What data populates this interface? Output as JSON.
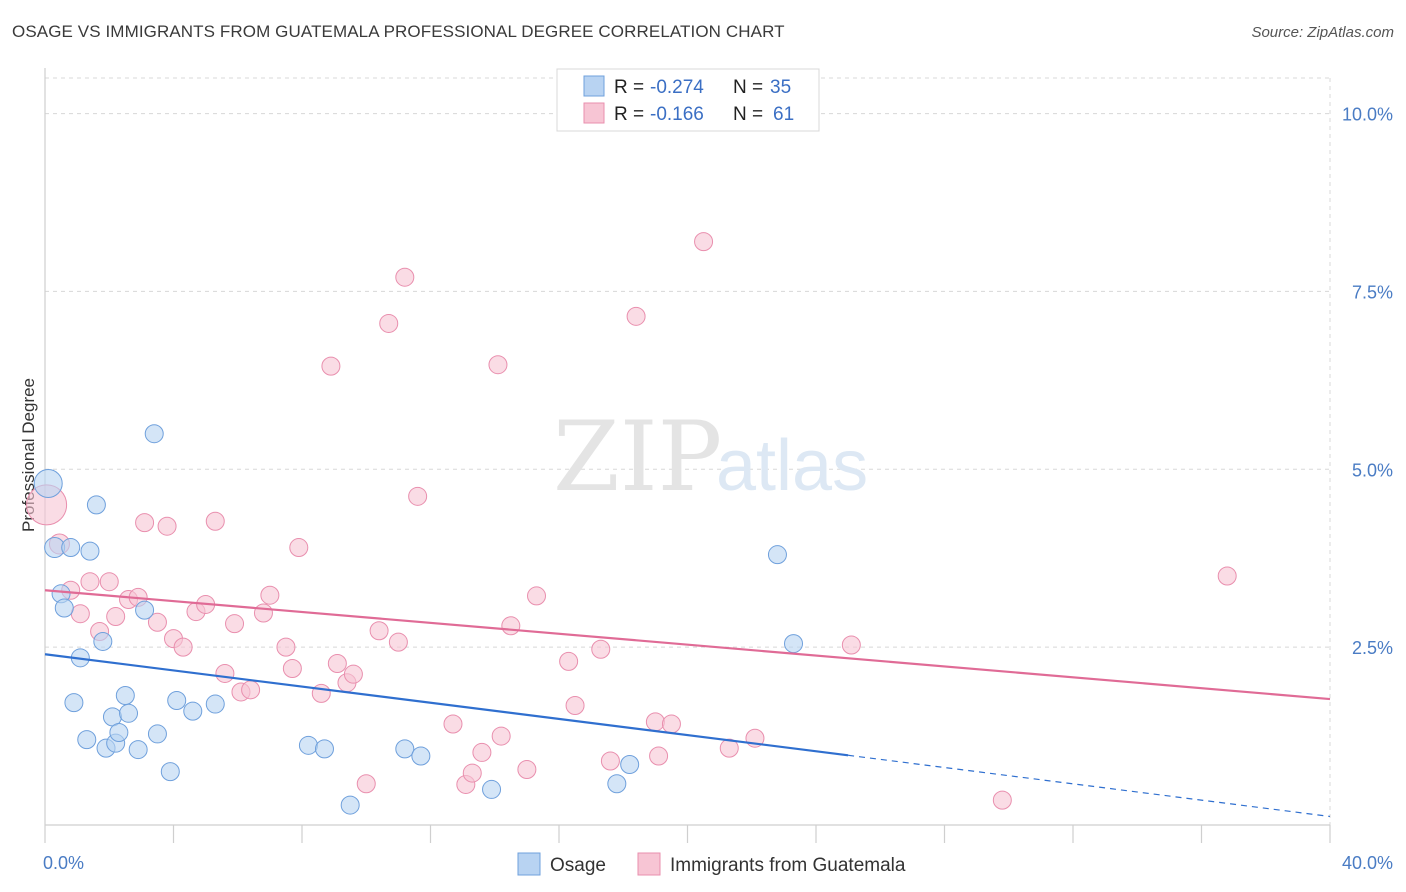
{
  "title": "OSAGE VS IMMIGRANTS FROM GUATEMALA PROFESSIONAL DEGREE CORRELATION CHART",
  "source": "Source: ZipAtlas.com",
  "watermark": {
    "zip": "ZIP",
    "atlas": "atlas"
  },
  "colors": {
    "osage_fill": "#b8d3f2",
    "osage_stroke": "#6fa0dc",
    "osage_line": "#2f6fcf",
    "guat_fill": "#f7c5d4",
    "guat_stroke": "#e98fae",
    "guat_line": "#e06b96",
    "grid": "#d8d8d8",
    "tick_text": "#4a7cc4"
  },
  "legend": {
    "rows": [
      {
        "r_label": "R = ",
        "r_value": "-0.274",
        "n_label": "N = ",
        "n_value": "35"
      },
      {
        "r_label": "R = ",
        "r_value": "-0.166",
        "n_label": "N = ",
        "n_value": "61"
      }
    ]
  },
  "chart_data": {
    "type": "scatter",
    "title": "OSAGE VS IMMIGRANTS FROM GUATEMALA PROFESSIONAL DEGREE CORRELATION CHART",
    "xlabel": "",
    "ylabel": "Professional Degree",
    "xlim": [
      0,
      40
    ],
    "ylim": [
      0,
      10.5
    ],
    "x_tick_labels": [
      "0.0%",
      "40.0%"
    ],
    "y_ticks": [
      2.5,
      5.0,
      7.5,
      10.0
    ],
    "y_tick_labels": [
      "2.5%",
      "5.0%",
      "7.5%",
      "10.0%"
    ],
    "grid": true,
    "legend_position": "top-center",
    "series": [
      {
        "name": "Osage",
        "color": "#6fa0dc",
        "trend": {
          "x0": 0,
          "y0": 2.4,
          "x1": 25,
          "y1": 0.98,
          "dashed_to_x": 40,
          "dashed_to_y": 0.12
        },
        "points": [
          [
            0.1,
            4.8,
            14
          ],
          [
            0.3,
            3.9,
            10
          ],
          [
            0.5,
            3.25,
            9
          ],
          [
            0.6,
            3.05,
            9
          ],
          [
            0.8,
            3.9,
            9
          ],
          [
            0.9,
            1.72,
            9
          ],
          [
            1.1,
            2.35,
            9
          ],
          [
            1.3,
            1.2,
            9
          ],
          [
            1.4,
            3.85,
            9
          ],
          [
            1.6,
            4.5,
            9
          ],
          [
            1.8,
            2.58,
            9
          ],
          [
            1.9,
            1.08,
            9
          ],
          [
            2.1,
            1.52,
            9
          ],
          [
            2.2,
            1.15,
            9
          ],
          [
            2.3,
            1.3,
            9
          ],
          [
            2.5,
            1.82,
            9
          ],
          [
            2.6,
            1.57,
            9
          ],
          [
            2.9,
            1.06,
            9
          ],
          [
            3.1,
            3.02,
            9
          ],
          [
            3.5,
            1.28,
            9
          ],
          [
            3.4,
            5.5,
            9
          ],
          [
            3.9,
            0.75,
            9
          ],
          [
            4.1,
            1.75,
            9
          ],
          [
            4.6,
            1.6,
            9
          ],
          [
            5.3,
            1.7,
            9
          ],
          [
            8.2,
            1.12,
            9
          ],
          [
            8.7,
            1.07,
            9
          ],
          [
            9.5,
            0.28,
            9
          ],
          [
            11.2,
            1.07,
            9
          ],
          [
            11.7,
            0.97,
            9
          ],
          [
            13.9,
            0.5,
            9
          ],
          [
            17.8,
            0.58,
            9
          ],
          [
            18.2,
            0.85,
            9
          ],
          [
            22.8,
            3.8,
            9
          ],
          [
            23.3,
            2.55,
            9
          ]
        ]
      },
      {
        "name": "Immigrants from Guatemala",
        "color": "#e98fae",
        "trend": {
          "x0": 0,
          "y0": 3.3,
          "x1": 40,
          "y1": 1.77
        },
        "points": [
          [
            0.05,
            4.5,
            20
          ],
          [
            0.45,
            3.95,
            10
          ],
          [
            0.8,
            3.3,
            9
          ],
          [
            1.1,
            2.97,
            9
          ],
          [
            1.4,
            3.42,
            9
          ],
          [
            1.7,
            2.72,
            9
          ],
          [
            2.0,
            3.42,
            9
          ],
          [
            2.2,
            2.93,
            9
          ],
          [
            2.6,
            3.17,
            9
          ],
          [
            2.9,
            3.2,
            9
          ],
          [
            3.1,
            4.25,
            9
          ],
          [
            3.5,
            2.85,
            9
          ],
          [
            3.8,
            4.2,
            9
          ],
          [
            4.0,
            2.62,
            9
          ],
          [
            4.3,
            2.5,
            9
          ],
          [
            4.7,
            3.0,
            9
          ],
          [
            5.0,
            3.1,
            9
          ],
          [
            5.3,
            4.27,
            9
          ],
          [
            5.6,
            2.13,
            9
          ],
          [
            5.9,
            2.83,
            9
          ],
          [
            6.1,
            1.87,
            9
          ],
          [
            6.4,
            1.9,
            9
          ],
          [
            6.8,
            2.98,
            9
          ],
          [
            7.0,
            3.23,
            9
          ],
          [
            7.5,
            2.5,
            9
          ],
          [
            7.7,
            2.2,
            9
          ],
          [
            7.9,
            3.9,
            9
          ],
          [
            8.6,
            1.85,
            9
          ],
          [
            8.9,
            6.45,
            9
          ],
          [
            9.1,
            2.27,
            9
          ],
          [
            9.4,
            2.0,
            9
          ],
          [
            9.6,
            2.12,
            9
          ],
          [
            10.0,
            0.58,
            9
          ],
          [
            10.4,
            2.73,
            9
          ],
          [
            10.7,
            7.05,
            9
          ],
          [
            11.0,
            2.57,
            9
          ],
          [
            11.2,
            7.7,
            9
          ],
          [
            11.6,
            4.62,
            9
          ],
          [
            12.7,
            1.42,
            9
          ],
          [
            13.1,
            0.57,
            9
          ],
          [
            13.3,
            0.73,
            9
          ],
          [
            13.6,
            1.02,
            9
          ],
          [
            14.1,
            6.47,
            9
          ],
          [
            14.2,
            1.25,
            9
          ],
          [
            14.5,
            2.8,
            9
          ],
          [
            15.0,
            0.78,
            9
          ],
          [
            15.3,
            3.22,
            9
          ],
          [
            16.3,
            2.3,
            9
          ],
          [
            16.5,
            1.68,
            9
          ],
          [
            17.3,
            2.47,
            9
          ],
          [
            17.6,
            0.9,
            9
          ],
          [
            18.4,
            7.15,
            9
          ],
          [
            19.0,
            1.45,
            9
          ],
          [
            19.5,
            1.42,
            9
          ],
          [
            19.1,
            0.97,
            9
          ],
          [
            20.5,
            8.2,
            9
          ],
          [
            21.3,
            1.08,
            9
          ],
          [
            22.1,
            1.22,
            9
          ],
          [
            25.1,
            2.53,
            9
          ],
          [
            29.8,
            0.35,
            9
          ],
          [
            36.8,
            3.5,
            9
          ]
        ]
      }
    ]
  }
}
